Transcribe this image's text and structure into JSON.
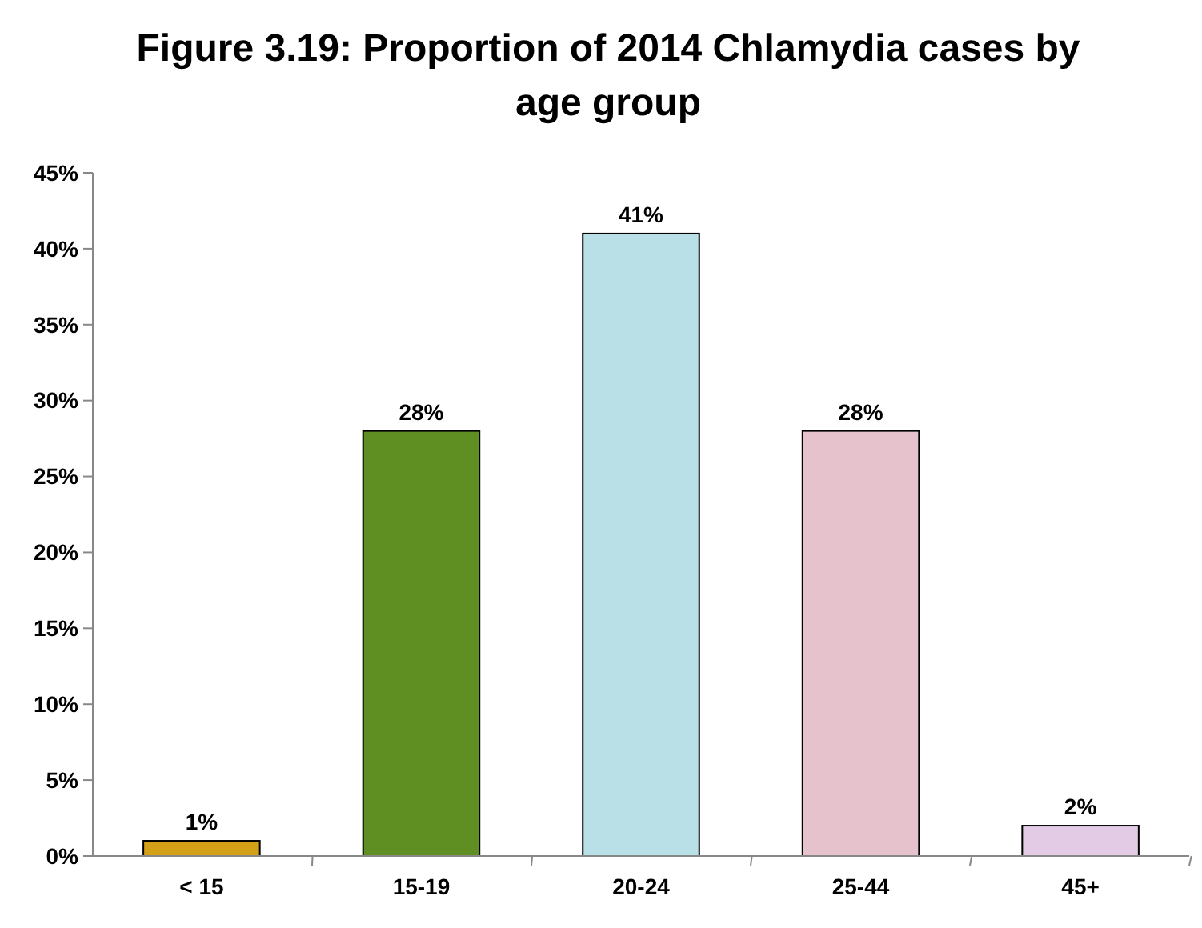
{
  "chart_data": {
    "type": "bar",
    "title": "Figure 3.19: Proportion of 2014 Chlamydia cases by age group",
    "categories": [
      "< 15",
      "15-19",
      "20-24",
      "25-44",
      "45+"
    ],
    "values": [
      1,
      28,
      41,
      28,
      2
    ],
    "value_labels": [
      "1%",
      "28%",
      "41%",
      "28%",
      "2%"
    ],
    "colors": [
      "#d4a017",
      "#5f8f23",
      "#b9e0e6",
      "#e6c3cc",
      "#e3cbe6"
    ],
    "ylim": [
      0,
      45
    ],
    "yticks": [
      {
        "value": 0,
        "label": "0%"
      },
      {
        "value": 5,
        "label": "5%"
      },
      {
        "value": 10,
        "label": "10%"
      },
      {
        "value": 15,
        "label": "15%"
      },
      {
        "value": 20,
        "label": "20%"
      },
      {
        "value": 25,
        "label": "25%"
      },
      {
        "value": 30,
        "label": "30%"
      },
      {
        "value": 35,
        "label": "35%"
      },
      {
        "value": 40,
        "label": "40%"
      },
      {
        "value": 45,
        "label": "45%"
      }
    ],
    "grid": false
  }
}
